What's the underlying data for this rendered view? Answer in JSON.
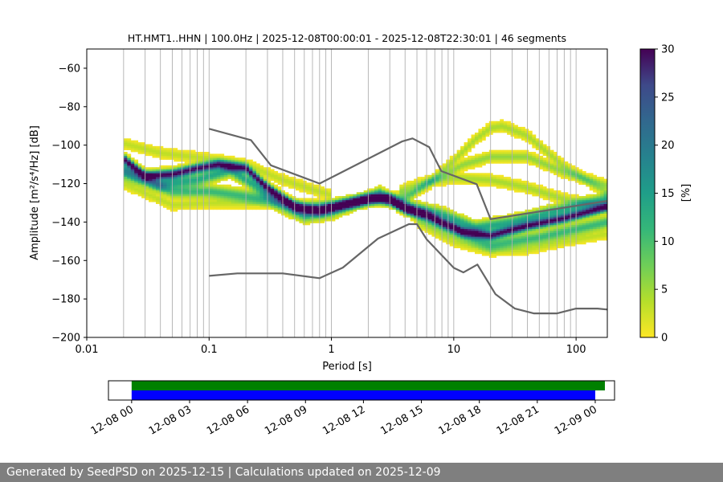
{
  "chart_data": [
    {
      "type": "heatmap",
      "title": "HT.HMT1..HHN | 100.0Hz | 2025-12-08T00:00:01 - 2025-12-08T22:30:01 | 46 segments",
      "xlabel": "Period [s]",
      "ylabel": "Amplitude [m²/s⁴/Hz] [dB]",
      "x_scale": "log",
      "xlim": [
        0.01,
        180
      ],
      "ylim": [
        -200,
        -50
      ],
      "x_ticks": [
        0.01,
        0.1,
        1,
        10,
        100
      ],
      "x_tick_labels": [
        "0.01",
        "0.1",
        "1",
        "10",
        "100"
      ],
      "y_ticks": [
        -200,
        -180,
        -160,
        -140,
        -120,
        -100,
        -80,
        -60
      ],
      "y_tick_labels": [
        "−200",
        "−180",
        "−160",
        "−140",
        "−120",
        "−100",
        "−80",
        "−60"
      ],
      "grid": "vertical-minor",
      "colorbar": {
        "label": "[%]",
        "range": [
          0,
          30
        ],
        "ticks": [
          0,
          5,
          10,
          15,
          20,
          25,
          30
        ],
        "tick_labels": [
          "0",
          "5",
          "10",
          "15",
          "20",
          "25",
          "30"
        ],
        "colormap": "viridis_r"
      },
      "noise_models": [
        {
          "name": "NHNM",
          "color": "#666666",
          "points": [
            [
              0.1,
              -91.5
            ],
            [
              0.22,
              -97.4
            ],
            [
              0.32,
              -110.5
            ],
            [
              0.8,
              -120
            ],
            [
              3.8,
              -98
            ],
            [
              4.6,
              -96.5
            ],
            [
              6.3,
              -101
            ],
            [
              7.9,
              -113.5
            ],
            [
              15.4,
              -120.3
            ],
            [
              20,
              -138.5
            ],
            [
              180,
              -129
            ]
          ]
        },
        {
          "name": "NLNM",
          "color": "#666666",
          "points": [
            [
              0.1,
              -168
            ],
            [
              0.17,
              -166.7
            ],
            [
              0.4,
              -166.7
            ],
            [
              0.8,
              -169.2
            ],
            [
              1.24,
              -163.7
            ],
            [
              2.4,
              -148.6
            ],
            [
              4.3,
              -141.1
            ],
            [
              5,
              -141.1
            ],
            [
              6,
              -149
            ],
            [
              10,
              -163.8
            ],
            [
              12,
              -166.2
            ],
            [
              15.6,
              -162.1
            ],
            [
              21.9,
              -177.5
            ],
            [
              31.6,
              -185
            ],
            [
              45,
              -187.5
            ],
            [
              70,
              -187.5
            ],
            [
              100,
              -185
            ],
            [
              150,
              -185
            ],
            [
              180,
              -185.5
            ]
          ]
        }
      ],
      "psd_bands": [
        {
          "name": "mode",
          "peak": 30,
          "spread": 1.5,
          "min_period": 0.02,
          "max_period": 180,
          "points": [
            [
              0.02,
              -107
            ],
            [
              0.03,
              -116
            ],
            [
              0.05,
              -115
            ],
            [
              0.08,
              -112
            ],
            [
              0.12,
              -110
            ],
            [
              0.2,
              -112
            ],
            [
              0.3,
              -122
            ],
            [
              0.5,
              -132
            ],
            [
              0.8,
              -134
            ],
            [
              1.2,
              -131
            ],
            [
              2,
              -128
            ],
            [
              3,
              -128
            ],
            [
              4,
              -133
            ],
            [
              6,
              -136
            ],
            [
              8,
              -140
            ],
            [
              12,
              -145
            ],
            [
              20,
              -147
            ],
            [
              40,
              -142
            ],
            [
              80,
              -138
            ],
            [
              180,
              -132
            ]
          ]
        },
        {
          "name": "upper-mode",
          "peak": 12,
          "spread": 2,
          "min_period": 0.02,
          "max_period": 180,
          "points": [
            [
              0.02,
              -112
            ],
            [
              0.04,
              -120
            ],
            [
              0.08,
              -118
            ],
            [
              0.15,
              -113
            ],
            [
              0.3,
              -125
            ],
            [
              0.6,
              -134
            ],
            [
              1,
              -132
            ],
            [
              2.5,
              -127
            ],
            [
              5,
              -133
            ],
            [
              8,
              -136
            ],
            [
              15,
              -143
            ],
            [
              30,
              -140
            ],
            [
              60,
              -135
            ],
            [
              180,
              -128
            ]
          ]
        },
        {
          "name": "lower-mode",
          "peak": 10,
          "spread": 2,
          "min_period": 0.02,
          "max_period": 180,
          "points": [
            [
              0.02,
              -115
            ],
            [
              0.05,
              -124
            ],
            [
              0.1,
              -124
            ],
            [
              0.3,
              -128
            ],
            [
              0.6,
              -137
            ],
            [
              1,
              -135
            ],
            [
              2.5,
              -125
            ],
            [
              5,
              -136
            ],
            [
              10,
              -145
            ],
            [
              20,
              -152
            ],
            [
              50,
              -148
            ],
            [
              180,
              -140
            ]
          ]
        },
        {
          "name": "spur-high-1",
          "peak": 4,
          "spread": 1.5,
          "min_period": 2.8,
          "max_period": 180,
          "points": [
            [
              2.8,
              -128
            ],
            [
              4.5,
              -125
            ],
            [
              7,
              -117
            ],
            [
              10,
              -108
            ],
            [
              15,
              -97
            ],
            [
              20,
              -91
            ],
            [
              25,
              -90
            ],
            [
              40,
              -95
            ],
            [
              80,
              -111
            ],
            [
              180,
              -125
            ]
          ]
        },
        {
          "name": "spur-high-2",
          "peak": 5,
          "spread": 1.5,
          "min_period": 3.5,
          "max_period": 180,
          "points": [
            [
              3.5,
              -130
            ],
            [
              7,
              -118
            ],
            [
              12,
              -110
            ],
            [
              20,
              -106
            ],
            [
              40,
              -106
            ],
            [
              80,
              -114
            ],
            [
              180,
              -121
            ]
          ]
        },
        {
          "name": "spur-mid",
          "peak": 4,
          "spread": 1.5,
          "min_period": 3.5,
          "max_period": 180,
          "points": [
            [
              3.5,
              -124
            ],
            [
              6,
              -119
            ],
            [
              10,
              -117
            ],
            [
              20,
              -118
            ],
            [
              40,
              -122
            ],
            [
              80,
              -128
            ],
            [
              180,
              -132
            ]
          ]
        },
        {
          "name": "spur-low",
          "peak": 3,
          "spread": 1.5,
          "min_period": 5,
          "max_period": 180,
          "points": [
            [
              5,
              -140
            ],
            [
              10,
              -150
            ],
            [
              20,
              -155
            ],
            [
              40,
              -154
            ],
            [
              80,
              -150
            ],
            [
              180,
              -146
            ]
          ]
        },
        {
          "name": "spur-upper-left",
          "peak": 3,
          "spread": 1.5,
          "min_period": 0.02,
          "max_period": 1,
          "points": [
            [
              0.02,
              -99
            ],
            [
              0.04,
              -104
            ],
            [
              0.1,
              -107
            ],
            [
              0.2,
              -110
            ],
            [
              0.4,
              -118
            ],
            [
              1,
              -126
            ]
          ]
        },
        {
          "name": "spur-lower-left",
          "peak": 3,
          "spread": 1.5,
          "min_period": 0.02,
          "max_period": 1,
          "points": [
            [
              0.02,
              -120
            ],
            [
              0.05,
              -131
            ],
            [
              0.1,
              -130
            ],
            [
              0.3,
              -130
            ],
            [
              1,
              -131
            ]
          ]
        }
      ]
    },
    {
      "type": "timeline",
      "x_ticks": [
        "12-08 00",
        "12-08 03",
        "12-08 06",
        "12-08 09",
        "12-08 12",
        "12-08 15",
        "12-08 18",
        "12-08 21",
        "12-09 00"
      ],
      "x_range_hours": [
        -1.2,
        25
      ],
      "bars": [
        {
          "name": "data-coverage",
          "color": "#008000",
          "start_hour": 0,
          "end_hour": 24.5
        },
        {
          "name": "psd-coverage",
          "color": "#0000ff",
          "start_hour": 0,
          "end_hour": 24
        }
      ]
    }
  ],
  "footer": "Generated by SeedPSD on 2025-12-15 | Calculations updated on 2025-12-09"
}
